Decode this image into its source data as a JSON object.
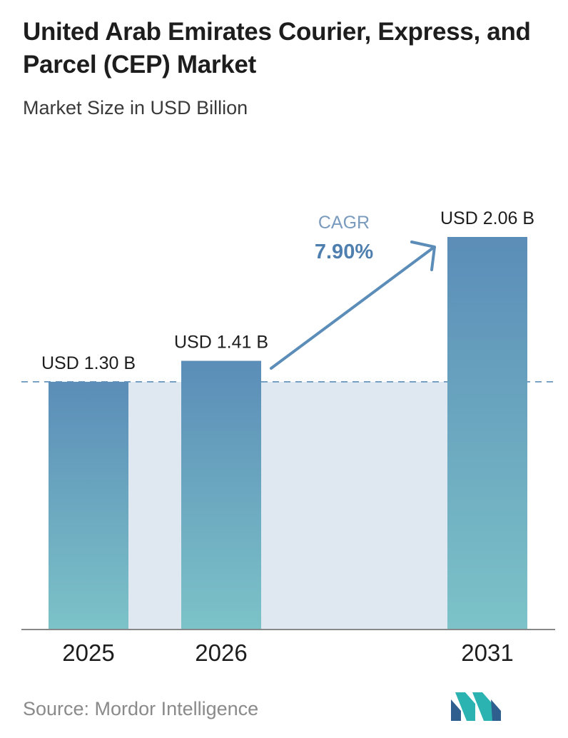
{
  "header": {
    "title": "United Arab Emirates Courier, Express, and Parcel (CEP) Market",
    "subtitle": "Market Size in USD Billion"
  },
  "footer": {
    "source": "Source:  Mordor Intelligence",
    "logo_icon": "mordor-intelligence-logo-icon"
  },
  "colors": {
    "bar_top": "#5b8db8",
    "bar_bottom": "#7cc3c8",
    "shade": "#dfe8f1",
    "arrow": "#5b8db8",
    "dashed_line": "#5b8db8",
    "cagr_label": "#7a9bbd",
    "cagr_value": "#4f7fae",
    "text_dark": "#1d1d1d"
  },
  "chart_data": {
    "type": "bar",
    "categories": [
      "2025",
      "2026",
      "2031"
    ],
    "values": [
      1.3,
      1.41,
      2.06
    ],
    "value_labels": [
      "USD 1.30 B",
      "USD 1.41 B",
      "USD 2.06 B"
    ],
    "unit": "USD Billion",
    "ylim": [
      0,
      2.2
    ],
    "reference_line": 1.3,
    "annotation": {
      "label": "CAGR",
      "value": "7.90%"
    },
    "grid": false,
    "legend": "none"
  }
}
